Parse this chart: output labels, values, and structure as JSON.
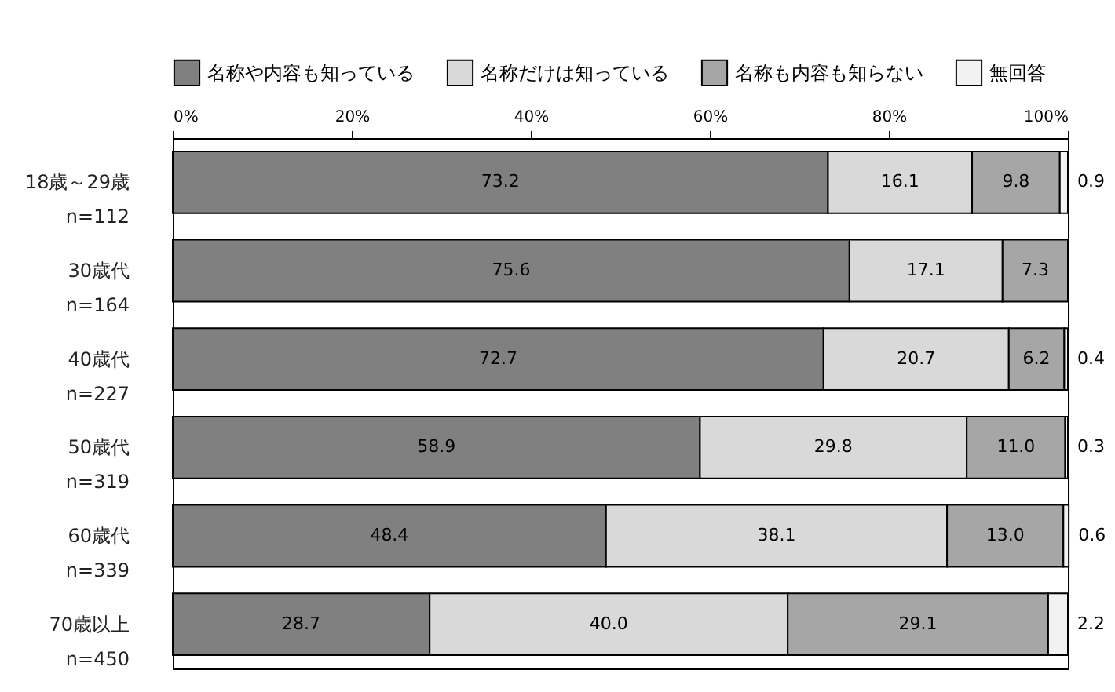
{
  "chart_data": {
    "type": "bar",
    "orientation": "horizontal",
    "stacked": true,
    "categories": [
      "18歳～29歳\nn=112",
      "30歳代\nn=164",
      "40歳代\nn=227",
      "50歳代\nn=319",
      "60歳代\nn=339",
      "70歳以上\nn=450"
    ],
    "series": [
      {
        "name": "名称や内容も知っている",
        "color": "#808080",
        "values": [
          73.2,
          75.6,
          72.7,
          58.9,
          48.4,
          28.7
        ],
        "value_labels": [
          "73.2",
          "75.6",
          "72.7",
          "58.9",
          "48.4",
          "28.7"
        ]
      },
      {
        "name": "名称だけは知っている",
        "color": "#d9d9d9",
        "values": [
          16.1,
          17.1,
          20.7,
          29.8,
          38.1,
          40.0
        ],
        "value_labels": [
          "16.1",
          "17.1",
          "20.7",
          "29.8",
          "38.1",
          "40.0"
        ]
      },
      {
        "name": "名称も内容も知らない",
        "color": "#a6a6a6",
        "values": [
          9.8,
          7.3,
          6.2,
          11.0,
          13.0,
          29.1
        ],
        "value_labels": [
          "9.8",
          "7.3",
          "6.2",
          "11.0",
          "13.0",
          "29.1"
        ]
      },
      {
        "name": "無回答",
        "color": "#f2f2f2",
        "values": [
          0.9,
          null,
          0.4,
          0.3,
          0.6,
          2.2
        ],
        "value_labels": [
          "0.9",
          null,
          "0.4",
          "0.3",
          "0.6",
          "2.2"
        ]
      }
    ],
    "xlim": [
      0,
      100
    ],
    "xticks": [
      {
        "value": 0,
        "label": "0%"
      },
      {
        "value": 20,
        "label": "20%"
      },
      {
        "value": 40,
        "label": "40%"
      },
      {
        "value": 60,
        "label": "60%"
      },
      {
        "value": 80,
        "label": "80%"
      },
      {
        "value": 100,
        "label": "100%"
      }
    ],
    "legend": "top",
    "grid": false
  }
}
